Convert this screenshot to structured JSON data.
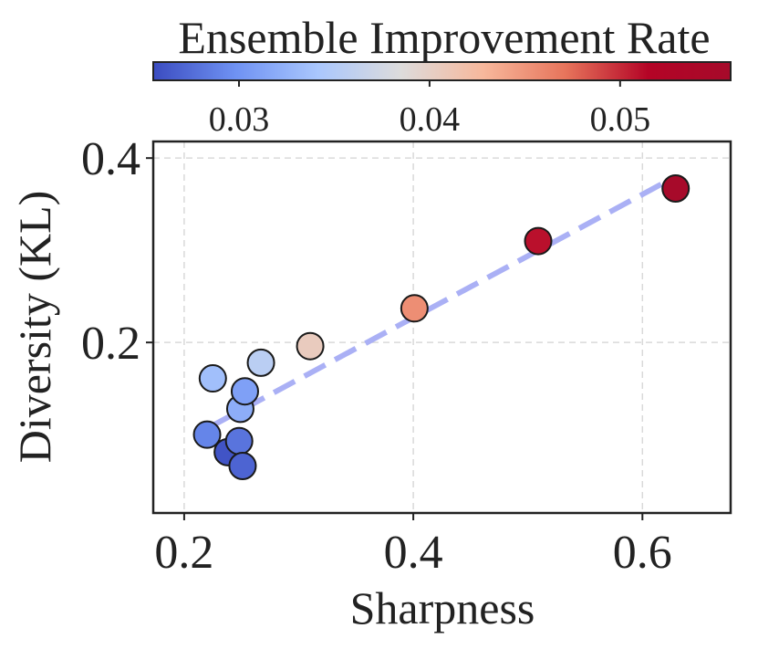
{
  "chart_data": {
    "type": "scatter",
    "title": "",
    "xlabel": "Sharpness",
    "ylabel": "Diversity (KL)",
    "xlim": [
      0.173,
      0.677
    ],
    "ylim": [
      0.015,
      0.418
    ],
    "xticks": [
      0.2,
      0.4,
      0.6
    ],
    "xtick_labels": [
      "0.2",
      "0.4",
      "0.6"
    ],
    "yticks": [
      0.2,
      0.4
    ],
    "ytick_labels": [
      "0.2",
      "0.4"
    ],
    "grid": true,
    "colorbar": {
      "title": "Ensemble Improvement Rate",
      "range": [
        0.0255,
        0.0558
      ],
      "ticks": [
        0.03,
        0.04,
        0.05
      ],
      "tick_labels": [
        "0.03",
        "0.04",
        "0.05"
      ],
      "colormap": "coolwarm",
      "colors": [
        "#3b4cc0",
        "#6f92f3",
        "#aac7fd",
        "#dddcdc",
        "#f7b89c",
        "#e7745b",
        "#b40426",
        "#a60a2a"
      ]
    },
    "points": [
      {
        "x": 0.22,
        "y": 0.1,
        "c": 0.029
      },
      {
        "x": 0.238,
        "y": 0.081,
        "c": 0.026
      },
      {
        "x": 0.248,
        "y": 0.093,
        "c": 0.028
      },
      {
        "x": 0.251,
        "y": 0.066,
        "c": 0.027
      },
      {
        "x": 0.249,
        "y": 0.128,
        "c": 0.032
      },
      {
        "x": 0.253,
        "y": 0.147,
        "c": 0.031
      },
      {
        "x": 0.225,
        "y": 0.161,
        "c": 0.0335
      },
      {
        "x": 0.267,
        "y": 0.178,
        "c": 0.0355
      },
      {
        "x": 0.31,
        "y": 0.196,
        "c": 0.0405
      },
      {
        "x": 0.401,
        "y": 0.237,
        "c": 0.0455
      },
      {
        "x": 0.509,
        "y": 0.31,
        "c": 0.051
      },
      {
        "x": 0.629,
        "y": 0.367,
        "c": 0.0555
      }
    ],
    "trendline": {
      "x": [
        0.225,
        0.629
      ],
      "y": [
        0.11,
        0.38
      ],
      "color": "#aab0f5",
      "style": "dashed"
    }
  }
}
